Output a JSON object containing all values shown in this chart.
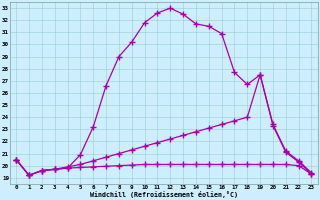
{
  "xlabel": "Windchill (Refroidissement éolien,°C)",
  "background_color": "#cceeff",
  "line_color": "#aa00aa",
  "xlim": [
    -0.5,
    23.5
  ],
  "ylim": [
    18.5,
    33.5
  ],
  "yticks": [
    19,
    20,
    21,
    22,
    23,
    24,
    25,
    26,
    27,
    28,
    29,
    30,
    31,
    32,
    33
  ],
  "xticks": [
    0,
    1,
    2,
    3,
    4,
    5,
    6,
    7,
    8,
    9,
    10,
    11,
    12,
    13,
    14,
    15,
    16,
    17,
    18,
    19,
    20,
    21,
    22,
    23
  ],
  "line1_x": [
    0,
    1,
    2,
    3,
    4,
    5,
    6,
    7,
    8,
    9,
    10,
    11,
    12,
    13,
    14,
    15,
    16,
    17,
    18,
    19,
    20,
    21,
    22,
    23
  ],
  "line1_y": [
    20.5,
    19.2,
    19.6,
    19.7,
    19.8,
    20.9,
    23.2,
    26.6,
    29.0,
    30.2,
    31.8,
    32.6,
    33.0,
    32.5,
    31.7,
    31.5,
    30.9,
    27.7,
    26.7,
    27.5,
    23.4,
    21.2,
    20.4,
    19.4
  ],
  "line2_x": [
    0,
    1,
    2,
    3,
    4,
    5,
    6,
    7,
    8,
    9,
    10,
    11,
    12,
    13,
    14,
    15,
    16,
    17,
    18,
    19,
    20,
    21,
    22,
    23
  ],
  "line2_y": [
    20.5,
    19.2,
    19.6,
    19.7,
    19.9,
    20.1,
    20.4,
    20.7,
    21.0,
    21.3,
    21.6,
    21.9,
    22.2,
    22.5,
    22.8,
    23.1,
    23.4,
    23.7,
    24.0,
    27.5,
    23.3,
    21.1,
    20.3,
    19.3
  ],
  "line3_x": [
    0,
    1,
    2,
    3,
    4,
    5,
    6,
    7,
    8,
    9,
    10,
    11,
    12,
    13,
    14,
    15,
    16,
    17,
    18,
    19,
    20,
    21,
    22,
    23
  ],
  "line3_y": [
    20.5,
    19.2,
    19.6,
    19.7,
    19.8,
    19.85,
    19.9,
    19.95,
    20.0,
    20.05,
    20.1,
    20.1,
    20.1,
    20.1,
    20.1,
    20.1,
    20.1,
    20.1,
    20.1,
    20.1,
    20.1,
    20.1,
    20.0,
    19.3
  ]
}
